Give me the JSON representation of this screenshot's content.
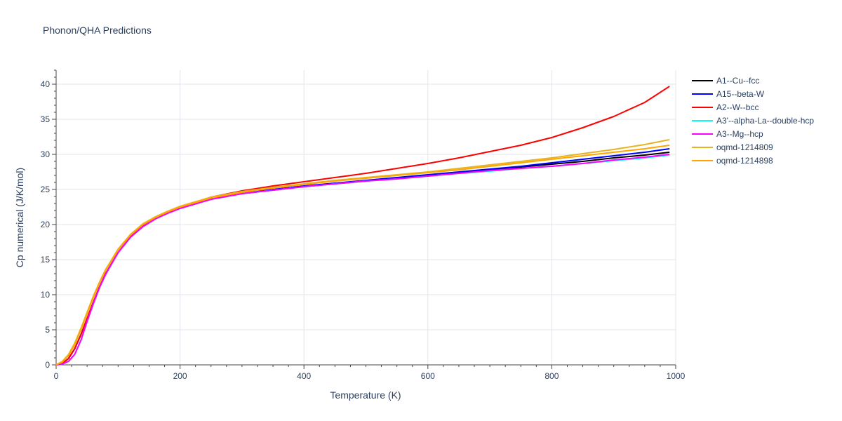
{
  "chart_data": {
    "type": "line",
    "title": "Phonon/QHA Predictions",
    "xlabel": "Temperature (K)",
    "ylabel": "Cp numerical (J/K/mol)",
    "xlim": [
      0,
      1000
    ],
    "ylim": [
      0,
      42
    ],
    "xticks": [
      0,
      200,
      400,
      600,
      800,
      1000
    ],
    "yticks": [
      0,
      5,
      10,
      15,
      20,
      25,
      30,
      35,
      40
    ],
    "grid": true,
    "legend_position": "right",
    "x": [
      0,
      10,
      20,
      30,
      40,
      50,
      60,
      70,
      80,
      100,
      120,
      140,
      160,
      180,
      200,
      250,
      300,
      350,
      400,
      450,
      500,
      550,
      600,
      650,
      700,
      750,
      800,
      850,
      900,
      950,
      990
    ],
    "series": [
      {
        "name": "A1--Cu--fcc",
        "color": "#000000",
        "values": [
          0,
          0.2,
          0.9,
          2.3,
          4.3,
          6.6,
          8.9,
          11.1,
          13.0,
          16.0,
          18.2,
          19.7,
          20.8,
          21.6,
          22.3,
          23.6,
          24.4,
          24.9,
          25.4,
          25.8,
          26.2,
          26.6,
          27.0,
          27.4,
          27.8,
          28.2,
          28.6,
          29.0,
          29.5,
          29.9,
          30.3
        ]
      },
      {
        "name": "A15--beta-W",
        "color": "#0000ff",
        "values": [
          0,
          0.2,
          0.9,
          2.3,
          4.3,
          6.6,
          8.9,
          11.1,
          13.0,
          16.0,
          18.2,
          19.7,
          20.8,
          21.6,
          22.3,
          23.7,
          24.5,
          25.0,
          25.5,
          25.9,
          26.3,
          26.7,
          27.1,
          27.5,
          27.9,
          28.3,
          28.8,
          29.3,
          29.8,
          30.3,
          30.8
        ]
      },
      {
        "name": "A2--W--bcc",
        "color": "#ff0000",
        "values": [
          0,
          0.2,
          0.9,
          2.3,
          4.3,
          6.6,
          8.9,
          11.1,
          13.0,
          16.0,
          18.3,
          19.8,
          20.9,
          21.8,
          22.5,
          23.9,
          24.8,
          25.5,
          26.1,
          26.7,
          27.3,
          28.0,
          28.7,
          29.5,
          30.4,
          31.3,
          32.4,
          33.8,
          35.4,
          37.4,
          39.7
        ]
      },
      {
        "name": "A3'--alpha-La--double-hcp",
        "color": "#00ffff",
        "values": [
          0,
          0.1,
          0.5,
          1.5,
          3.5,
          6.2,
          8.7,
          11.0,
          12.9,
          16.0,
          18.2,
          19.7,
          20.8,
          21.6,
          22.3,
          23.6,
          24.4,
          24.9,
          25.4,
          25.8,
          26.2,
          26.5,
          26.9,
          27.3,
          27.6,
          28.0,
          28.3,
          28.7,
          29.1,
          29.5,
          29.9
        ]
      },
      {
        "name": "A3--Mg--hcp",
        "color": "#ff00ff",
        "values": [
          0,
          0.1,
          0.5,
          1.5,
          3.5,
          6.2,
          8.7,
          11.0,
          12.9,
          16.0,
          18.2,
          19.7,
          20.8,
          21.6,
          22.3,
          23.6,
          24.4,
          24.9,
          25.4,
          25.8,
          26.2,
          26.5,
          26.9,
          27.3,
          27.7,
          28.0,
          28.3,
          28.7,
          29.2,
          29.6,
          30.0
        ]
      },
      {
        "name": "oqmd-1214809",
        "color": "#e6b422",
        "values": [
          0,
          0.5,
          1.5,
          3.1,
          5.2,
          7.5,
          9.8,
          11.8,
          13.6,
          16.5,
          18.6,
          20.1,
          21.1,
          21.9,
          22.6,
          23.9,
          24.7,
          25.3,
          25.8,
          26.3,
          26.7,
          27.1,
          27.5,
          28.0,
          28.5,
          29.0,
          29.5,
          30.1,
          30.7,
          31.4,
          32.1
        ]
      },
      {
        "name": "oqmd-1214898",
        "color": "#ffa500",
        "values": [
          0,
          0.4,
          1.3,
          2.9,
          5.0,
          7.3,
          9.6,
          11.7,
          13.5,
          16.4,
          18.5,
          20.0,
          21.0,
          21.8,
          22.5,
          23.8,
          24.6,
          25.2,
          25.7,
          26.2,
          26.6,
          27.0,
          27.4,
          27.8,
          28.3,
          28.8,
          29.3,
          29.8,
          30.3,
          30.8,
          31.3
        ]
      }
    ]
  }
}
